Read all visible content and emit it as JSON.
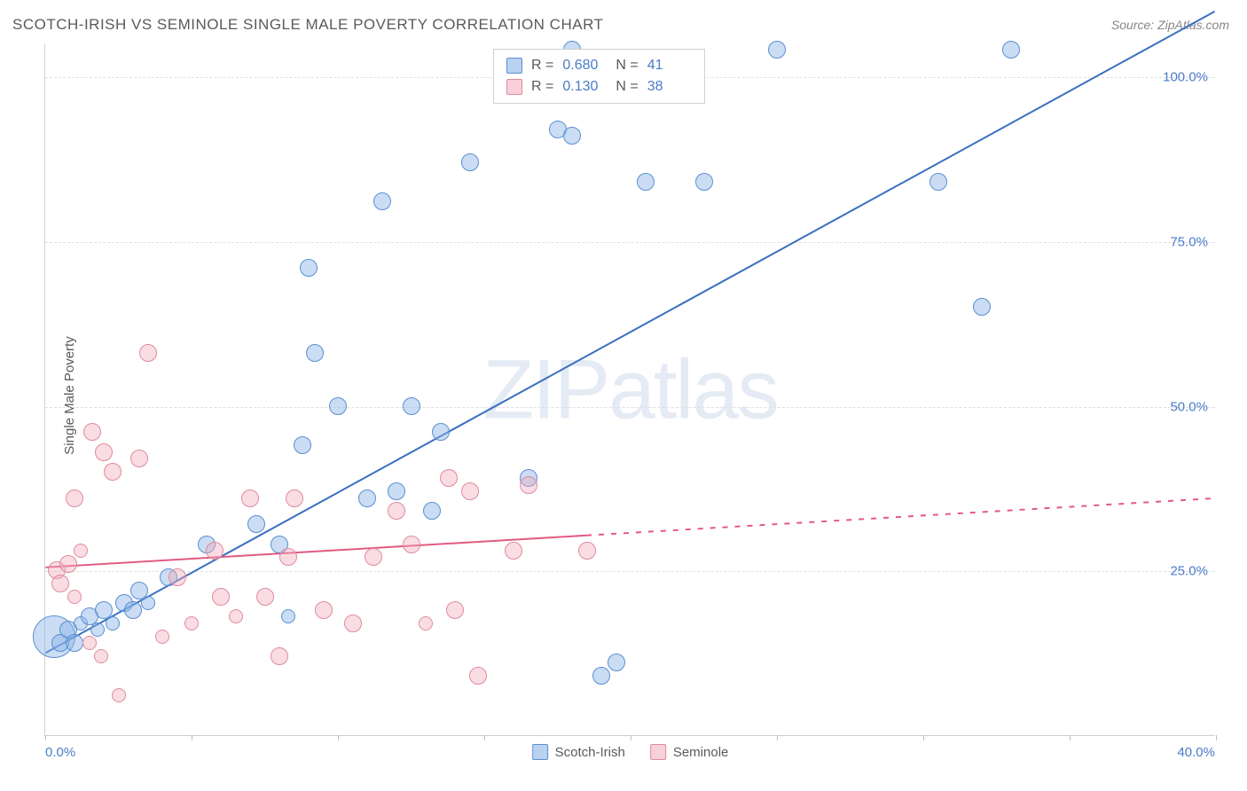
{
  "title": "SCOTCH-IRISH VS SEMINOLE SINGLE MALE POVERTY CORRELATION CHART",
  "source": "Source: ZipAtlas.com",
  "y_axis_label": "Single Male Poverty",
  "watermark": {
    "zip": "ZIP",
    "atlas": "atlas"
  },
  "chart": {
    "type": "scatter",
    "xlim": [
      0,
      40
    ],
    "ylim": [
      0,
      105
    ],
    "x_ticks": [
      0,
      40
    ],
    "x_tick_marks": [
      0,
      5,
      10,
      15,
      20,
      25,
      30,
      35,
      40
    ],
    "x_tick_labels": [
      "0.0%",
      "40.0%"
    ],
    "y_ticks": [
      25,
      50,
      75,
      100
    ],
    "y_tick_labels": [
      "25.0%",
      "50.0%",
      "75.0%",
      "100.0%"
    ],
    "grid_color": "#e0e0e0",
    "background_color": "#ffffff",
    "series": [
      {
        "name": "Scotch-Irish",
        "color_fill": "rgba(138,180,230,0.45)",
        "color_stroke": "#5a8fd0",
        "R": "0.680",
        "N": "41",
        "trend": {
          "y_at_x0": 12.5,
          "y_at_x40": 110,
          "stroke": "#3a6fc0",
          "width": 2
        },
        "points": [
          {
            "x": 0.3,
            "y": 15,
            "r": 24
          },
          {
            "x": 0.5,
            "y": 14,
            "r": 10
          },
          {
            "x": 0.8,
            "y": 16,
            "r": 10
          },
          {
            "x": 1.0,
            "y": 14,
            "r": 10
          },
          {
            "x": 1.2,
            "y": 17,
            "r": 8
          },
          {
            "x": 1.5,
            "y": 18,
            "r": 10
          },
          {
            "x": 1.8,
            "y": 16,
            "r": 8
          },
          {
            "x": 2.0,
            "y": 19,
            "r": 10
          },
          {
            "x": 2.3,
            "y": 17,
            "r": 8
          },
          {
            "x": 2.7,
            "y": 20,
            "r": 10
          },
          {
            "x": 3.0,
            "y": 19,
            "r": 10
          },
          {
            "x": 3.2,
            "y": 22,
            "r": 10
          },
          {
            "x": 3.5,
            "y": 20,
            "r": 8
          },
          {
            "x": 4.2,
            "y": 24,
            "r": 10
          },
          {
            "x": 5.5,
            "y": 29,
            "r": 10
          },
          {
            "x": 7.2,
            "y": 32,
            "r": 10
          },
          {
            "x": 8.0,
            "y": 29,
            "r": 10
          },
          {
            "x": 8.3,
            "y": 18,
            "r": 8
          },
          {
            "x": 8.8,
            "y": 44,
            "r": 10
          },
          {
            "x": 9.2,
            "y": 58,
            "r": 10
          },
          {
            "x": 9.0,
            "y": 71,
            "r": 10
          },
          {
            "x": 10.0,
            "y": 50,
            "r": 10
          },
          {
            "x": 11.0,
            "y": 36,
            "r": 10
          },
          {
            "x": 11.5,
            "y": 81,
            "r": 10
          },
          {
            "x": 12.0,
            "y": 37,
            "r": 10
          },
          {
            "x": 12.5,
            "y": 50,
            "r": 10
          },
          {
            "x": 13.2,
            "y": 34,
            "r": 10
          },
          {
            "x": 13.5,
            "y": 46,
            "r": 10
          },
          {
            "x": 14.5,
            "y": 87,
            "r": 10
          },
          {
            "x": 16.5,
            "y": 39,
            "r": 10
          },
          {
            "x": 17.5,
            "y": 92,
            "r": 10
          },
          {
            "x": 18.0,
            "y": 91,
            "r": 10
          },
          {
            "x": 18.0,
            "y": 104,
            "r": 10
          },
          {
            "x": 19.0,
            "y": 9,
            "r": 10
          },
          {
            "x": 19.5,
            "y": 11,
            "r": 10
          },
          {
            "x": 20.5,
            "y": 84,
            "r": 10
          },
          {
            "x": 22.5,
            "y": 84,
            "r": 10
          },
          {
            "x": 25.0,
            "y": 104,
            "r": 10
          },
          {
            "x": 30.5,
            "y": 84,
            "r": 10
          },
          {
            "x": 32.0,
            "y": 65,
            "r": 10
          },
          {
            "x": 33.0,
            "y": 104,
            "r": 10
          }
        ]
      },
      {
        "name": "Seminole",
        "color_fill": "rgba(240,170,185,0.4)",
        "color_stroke": "#e08aa0",
        "R": "0.130",
        "N": "38",
        "trend": {
          "y_at_x0": 25.5,
          "y_at_x40": 36,
          "solid_until_x": 18.5,
          "stroke": "#e35a80",
          "width": 2
        },
        "points": [
          {
            "x": 0.4,
            "y": 25,
            "r": 10
          },
          {
            "x": 0.5,
            "y": 23,
            "r": 10
          },
          {
            "x": 0.8,
            "y": 26,
            "r": 10
          },
          {
            "x": 1.0,
            "y": 21,
            "r": 8
          },
          {
            "x": 1.0,
            "y": 36,
            "r": 10
          },
          {
            "x": 1.2,
            "y": 28,
            "r": 8
          },
          {
            "x": 1.5,
            "y": 14,
            "r": 8
          },
          {
            "x": 1.6,
            "y": 46,
            "r": 10
          },
          {
            "x": 1.9,
            "y": 12,
            "r": 8
          },
          {
            "x": 2.0,
            "y": 43,
            "r": 10
          },
          {
            "x": 2.3,
            "y": 40,
            "r": 10
          },
          {
            "x": 2.5,
            "y": 6,
            "r": 8
          },
          {
            "x": 3.2,
            "y": 42,
            "r": 10
          },
          {
            "x": 3.5,
            "y": 58,
            "r": 10
          },
          {
            "x": 4.0,
            "y": 15,
            "r": 8
          },
          {
            "x": 4.5,
            "y": 24,
            "r": 10
          },
          {
            "x": 5.0,
            "y": 17,
            "r": 8
          },
          {
            "x": 5.8,
            "y": 28,
            "r": 10
          },
          {
            "x": 6.0,
            "y": 21,
            "r": 10
          },
          {
            "x": 6.5,
            "y": 18,
            "r": 8
          },
          {
            "x": 7.0,
            "y": 36,
            "r": 10
          },
          {
            "x": 7.5,
            "y": 21,
            "r": 10
          },
          {
            "x": 8.0,
            "y": 12,
            "r": 10
          },
          {
            "x": 8.3,
            "y": 27,
            "r": 10
          },
          {
            "x": 8.5,
            "y": 36,
            "r": 10
          },
          {
            "x": 9.5,
            "y": 19,
            "r": 10
          },
          {
            "x": 10.5,
            "y": 17,
            "r": 10
          },
          {
            "x": 11.2,
            "y": 27,
            "r": 10
          },
          {
            "x": 12.0,
            "y": 34,
            "r": 10
          },
          {
            "x": 12.5,
            "y": 29,
            "r": 10
          },
          {
            "x": 13.0,
            "y": 17,
            "r": 8
          },
          {
            "x": 13.8,
            "y": 39,
            "r": 10
          },
          {
            "x": 14.0,
            "y": 19,
            "r": 10
          },
          {
            "x": 14.5,
            "y": 37,
            "r": 10
          },
          {
            "x": 14.8,
            "y": 9,
            "r": 10
          },
          {
            "x": 16.0,
            "y": 28,
            "r": 10
          },
          {
            "x": 16.5,
            "y": 38,
            "r": 10
          },
          {
            "x": 18.5,
            "y": 28,
            "r": 10
          }
        ]
      }
    ]
  },
  "legend": {
    "series1": "Scotch-Irish",
    "series2": "Seminole"
  },
  "stats_labels": {
    "R": "R =",
    "N": "N ="
  }
}
